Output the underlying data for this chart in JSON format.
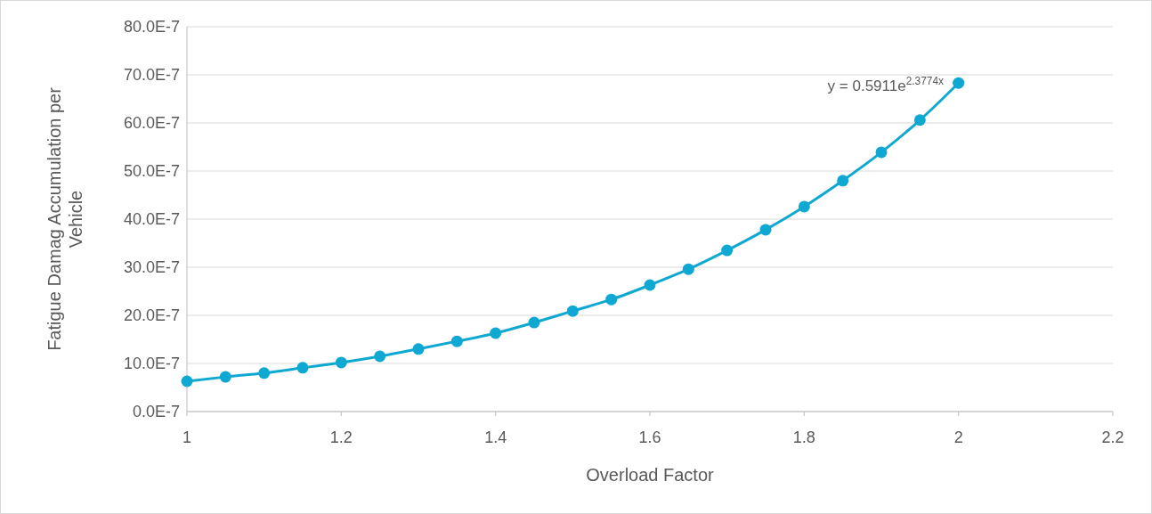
{
  "chart_data": {
    "type": "line",
    "xlabel": "Overload Factor",
    "ylabel": "Fatigue Damag Accumulation per Vehicle",
    "x": [
      1,
      1.05,
      1.1,
      1.15,
      1.2,
      1.25,
      1.3,
      1.35,
      1.4,
      1.45,
      1.5,
      1.55,
      1.6,
      1.65,
      1.7,
      1.75,
      1.8,
      1.85,
      1.9,
      1.95,
      2
    ],
    "series": [
      {
        "color": "#0fa8d2",
        "values": [
          6.3e-07,
          7.2e-07,
          8e-07,
          9.1e-07,
          1.02e-06,
          1.15e-06,
          1.3e-06,
          1.46e-06,
          1.63e-06,
          1.85e-06,
          2.09e-06,
          2.33e-06,
          2.63e-06,
          2.96e-06,
          3.35e-06,
          3.78e-06,
          4.26e-06,
          4.8e-06,
          5.39e-06,
          6.06e-06,
          6.83e-06
        ]
      }
    ],
    "xlim": [
      1,
      2.2
    ],
    "xticks": [
      1,
      1.2,
      1.4,
      1.6,
      1.8,
      2,
      2.2
    ],
    "ylim": [
      0,
      8e-06
    ],
    "yticks": [
      {
        "value": 0,
        "label": "0.0E-7"
      },
      {
        "value": 1e-06,
        "label": "10.0E-7"
      },
      {
        "value": 2e-06,
        "label": "20.0E-7"
      },
      {
        "value": 3e-06,
        "label": "30.0E-7"
      },
      {
        "value": 4e-06,
        "label": "40.0E-7"
      },
      {
        "value": 5e-06,
        "label": "50.0E-7"
      },
      {
        "value": 6e-06,
        "label": "60.0E-7"
      },
      {
        "value": 7e-06,
        "label": "70.0E-7"
      },
      {
        "value": 8e-06,
        "label": "80.0E-7"
      }
    ],
    "annotations": [
      "y = 0.5911e$^{2.3774x}$"
    ],
    "grid": "y",
    "marker": "circle",
    "line_style": "solid"
  }
}
